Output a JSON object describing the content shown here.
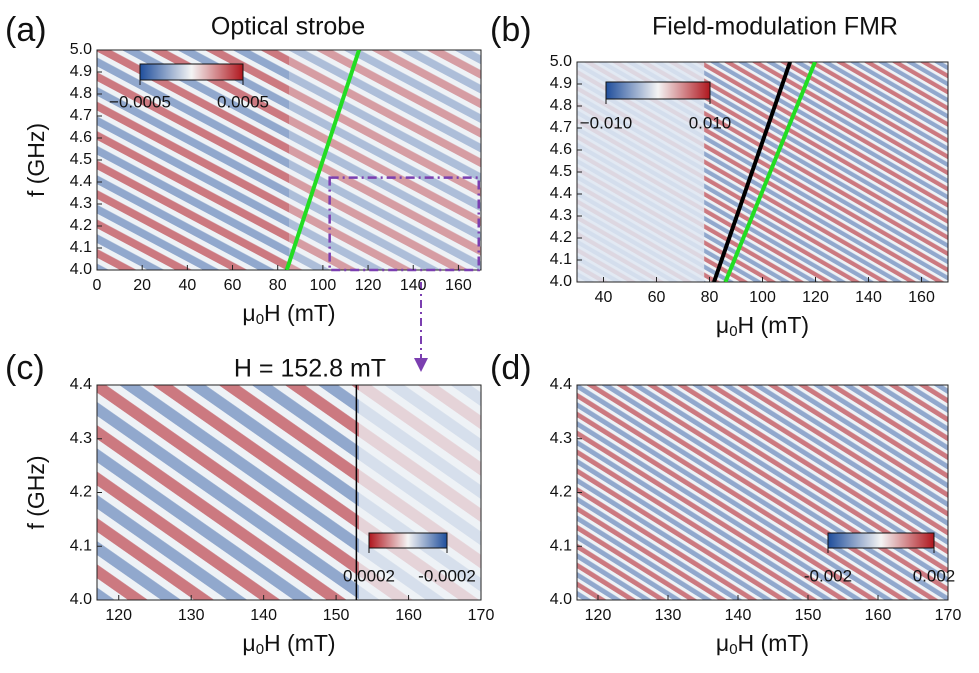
{
  "chart_data": [
    {
      "type": "heatmap",
      "label": "(a)",
      "title": "Optical strobe",
      "xlabel": {
        "symbol": "μ",
        "subscript": "0",
        "rest": "H (mT)"
      },
      "ylabel": "f (GHz)",
      "xlim": [
        0,
        170
      ],
      "xticks": [
        0,
        20,
        40,
        60,
        80,
        100,
        120,
        140,
        160
      ],
      "ylim": [
        4,
        5
      ],
      "yticks": [
        {
          "value": 4,
          "label": "4.0"
        },
        4.1,
        4.2,
        4.3,
        4.4,
        4.5,
        4.6,
        4.7,
        4.8,
        4.9,
        {
          "value": 5,
          "label": "5.0"
        }
      ],
      "colormap": [
        "#1f4e9c",
        "#f4f4f4",
        "#b0161e"
      ],
      "colorbar": {
        "ticks": [
          {
            "value": -0.0005,
            "label": "−0.0005"
          },
          {
            "value": 0.0005,
            "label": "0.0005"
          }
        ]
      },
      "lines": [
        {
          "x": [
            84,
            116
          ],
          "y": [
            4,
            5
          ],
          "color": "#22dd22"
        }
      ],
      "box": {
        "x": [
          103,
          169
        ],
        "y": [
          4,
          4.42
        ],
        "color": "#7b3fb0"
      }
    },
    {
      "type": "heatmap",
      "label": "(b)",
      "title": "Field-modulation FMR",
      "xlabel": {
        "symbol": "μ",
        "subscript": "0",
        "rest": "H (mT)"
      },
      "xlim": [
        30,
        170
      ],
      "xticks": [
        40,
        60,
        80,
        100,
        120,
        140,
        160
      ],
      "ylim": [
        4,
        5
      ],
      "yticks": [
        {
          "value": 4,
          "label": "4.0"
        },
        4.1,
        4.2,
        4.3,
        4.4,
        4.5,
        4.6,
        4.7,
        4.8,
        4.9,
        {
          "value": 5,
          "label": "5.0"
        }
      ],
      "colormap": [
        "#1f4e9c",
        "#f4f4f4",
        "#b0161e"
      ],
      "colorbar": {
        "ticks": [
          {
            "value": -0.01,
            "label": "−0.010"
          },
          {
            "value": 0.01,
            "label": "0.010"
          }
        ]
      },
      "lines": [
        {
          "x": [
            81.7,
            110.4
          ],
          "y": [
            4,
            5
          ],
          "color": "#000000"
        },
        {
          "x": [
            86,
            119.8
          ],
          "y": [
            4,
            5
          ],
          "color": "#22dd22"
        }
      ]
    },
    {
      "type": "heatmap",
      "label": "(c)",
      "annotation": "H = 152.8 mT",
      "xlabel": {
        "symbol": "μ",
        "subscript": "0",
        "rest": "H (mT)"
      },
      "ylabel": "f (GHz)",
      "xlim": [
        117,
        170
      ],
      "xticks": [
        120,
        130,
        140,
        150,
        160,
        170
      ],
      "ylim": [
        4,
        4.4
      ],
      "yticks": [
        {
          "value": 4,
          "label": "4.0"
        },
        4.1,
        4.2,
        4.3,
        4.4
      ],
      "colormap": [
        "#b0161e",
        "#f4f4f4",
        "#1f4e9c"
      ],
      "colorbar": {
        "ticks": [
          {
            "value": 0.0002,
            "label": "0.0002"
          },
          {
            "value": -0.0002,
            "label": "-0.0002"
          }
        ]
      },
      "lines": [
        {
          "x": [
            152.8,
            152.8
          ],
          "y": [
            4,
            4.4
          ],
          "color": "#000000"
        }
      ]
    },
    {
      "type": "heatmap",
      "label": "(d)",
      "xlabel": {
        "symbol": "μ",
        "subscript": "0",
        "rest": "H (mT)"
      },
      "xlim": [
        117,
        170
      ],
      "xticks": [
        120,
        130,
        140,
        150,
        160,
        170
      ],
      "ylim": [
        4,
        4.4
      ],
      "yticks": [
        {
          "value": 4,
          "label": "4.0"
        },
        4.1,
        4.2,
        4.3,
        4.4
      ],
      "colormap": [
        "#1f4e9c",
        "#f4f4f4",
        "#b0161e"
      ],
      "colorbar": {
        "ticks": [
          {
            "value": -0.002,
            "label": "-0.002"
          },
          {
            "value": 0.002,
            "label": "0.002"
          }
        ]
      }
    }
  ]
}
